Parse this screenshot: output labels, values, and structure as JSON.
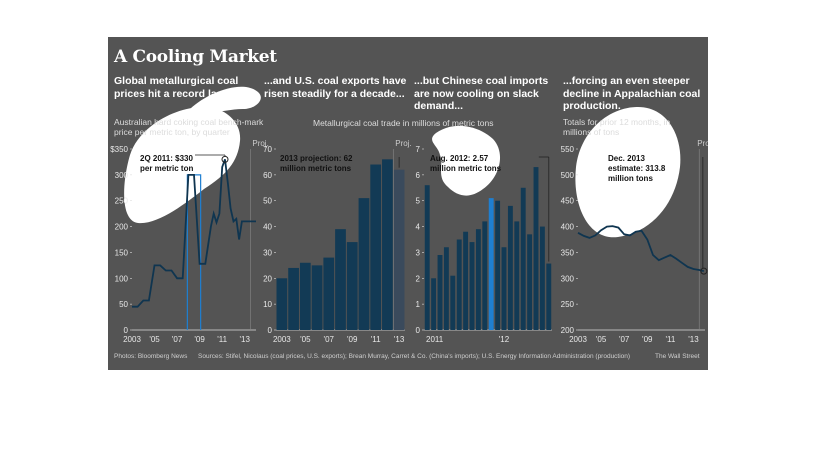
{
  "title": "A Cooling Market",
  "panels": [
    {
      "headline": "Global metallurgical coal prices hit a record last year...",
      "subtitle": "Australian hard coking coal bench-mark price per metric ton, by quarter"
    },
    {
      "headline": "...and U.S. coal exports have risen steadily for a decade...",
      "subtitle": ""
    },
    {
      "headline": "...but Chinese coal imports are now cooling on slack demand...",
      "subtitle": ""
    },
    {
      "headline": "...forcing an even steeper decline in Appalachian coal production.",
      "subtitle": "Totals for prior 12 months, in millions of tons"
    }
  ],
  "shared_subtitle": "Metallurgical coal trade in millions of metric tons",
  "footer": {
    "photos": "Photos: Bloomberg News",
    "sources": "Sources: Stifel, Nicolaus (coal prices, U.S. exports); Brean Murray, Carret & Co. (China's imports); U.S. Energy Information Administration (production)",
    "credit": "The Wall Street"
  },
  "colors": {
    "background": "#545454",
    "bar": "#123a55",
    "bar_projection": "#3a4a5c",
    "line": "#0f3550",
    "highlight": "#1f7fd0",
    "blob": "#ffffff"
  },
  "chart_data": [
    {
      "type": "line",
      "proj_label": "Proj.",
      "ylim": [
        0,
        350
      ],
      "yticks": [
        0,
        50,
        100,
        150,
        200,
        250,
        300,
        350
      ],
      "ytick_labels": [
        "0",
        "50",
        "100",
        "150",
        "200",
        "250",
        "300",
        "$350"
      ],
      "xlim": [
        2003,
        2014
      ],
      "xticks": [
        2003,
        2005,
        2007,
        2009,
        2011,
        2013
      ],
      "xtick_labels": [
        "2003",
        "'05",
        "'07",
        "'09",
        "'11",
        "'13"
      ],
      "x": [
        2003,
        2003.5,
        2004,
        2004.5,
        2005,
        2005.5,
        2006,
        2006.5,
        2007,
        2007.5,
        2008,
        2008.5,
        2009,
        2009.5,
        2010,
        2010.25,
        2010.5,
        2010.75,
        2011,
        2011.25,
        2011.5,
        2011.75,
        2012,
        2012.25,
        2012.5,
        2012.75,
        2013,
        2013.5,
        2014
      ],
      "y": [
        45,
        45,
        57,
        57,
        125,
        125,
        115,
        115,
        100,
        100,
        300,
        300,
        128,
        128,
        200,
        225,
        208,
        225,
        315,
        330,
        285,
        235,
        210,
        215,
        175,
        210,
        210,
        210,
        210
      ],
      "highlight_x": [
        2008,
        2009
      ],
      "marker": {
        "x": 2011.25,
        "y": 330
      },
      "annotation": "2Q 2011: $330 per metric ton"
    },
    {
      "type": "bar",
      "proj_label": "Proj.",
      "categories": [
        "2003",
        "2004",
        "2005",
        "2006",
        "2007",
        "2008",
        "2009",
        "2010",
        "2011",
        "2012",
        "2013"
      ],
      "values": [
        20,
        24,
        26,
        25,
        28,
        39,
        34,
        51,
        64,
        66,
        62
      ],
      "projection_from": "2013",
      "ylim": [
        0,
        70
      ],
      "yticks": [
        0,
        10,
        20,
        30,
        40,
        50,
        60,
        70
      ],
      "xtick_labels": [
        "2003",
        "'05",
        "'07",
        "'09",
        "'11",
        "'13"
      ],
      "annotation": "2013 projection: 62 million metric tons"
    },
    {
      "type": "bar",
      "categories": [
        "2011-01",
        "2011-02",
        "2011-03",
        "2011-04",
        "2011-05",
        "2011-06",
        "2011-07",
        "2011-08",
        "2011-09",
        "2011-10",
        "2011-11",
        "2011-12",
        "2012-01",
        "2012-02",
        "2012-03",
        "2012-04",
        "2012-05",
        "2012-06",
        "2012-07",
        "2012-08"
      ],
      "values": [
        5.6,
        2.0,
        2.9,
        3.2,
        2.1,
        3.5,
        3.8,
        3.4,
        3.9,
        4.2,
        5.1,
        5.0,
        3.2,
        4.8,
        4.2,
        5.5,
        3.7,
        6.3,
        4.0,
        2.57
      ],
      "ylim": [
        0,
        7
      ],
      "yticks": [
        0,
        1,
        2,
        3,
        4,
        5,
        6,
        7
      ],
      "xtick_labels": [
        "2011",
        "'12"
      ],
      "annotation": "Aug. 2012: 2.57 million metric tons"
    },
    {
      "type": "line",
      "proj_label": "Proj.",
      "ylim": [
        200,
        550
      ],
      "yticks": [
        200,
        250,
        300,
        350,
        400,
        450,
        500,
        550
      ],
      "xlim": [
        2003,
        2014
      ],
      "xticks": [
        2003,
        2005,
        2007,
        2009,
        2011,
        2013
      ],
      "xtick_labels": [
        "2003",
        "'05",
        "'07",
        "'09",
        "'11",
        "'13"
      ],
      "x": [
        2003,
        2003.5,
        2004,
        2004.5,
        2005,
        2005.5,
        2006,
        2006.5,
        2007,
        2007.5,
        2008,
        2008.5,
        2009,
        2009.5,
        2010,
        2010.5,
        2011,
        2011.5,
        2012,
        2012.5,
        2013,
        2013.5,
        2013.9
      ],
      "y": [
        388,
        382,
        378,
        383,
        393,
        400,
        401,
        398,
        385,
        383,
        390,
        392,
        375,
        345,
        335,
        340,
        345,
        338,
        330,
        322,
        318,
        316,
        313.8
      ],
      "marker": {
        "x": 2013.9,
        "y": 313.8
      },
      "annotation": "Dec. 2013 estimate: 313.8 million tons"
    }
  ]
}
